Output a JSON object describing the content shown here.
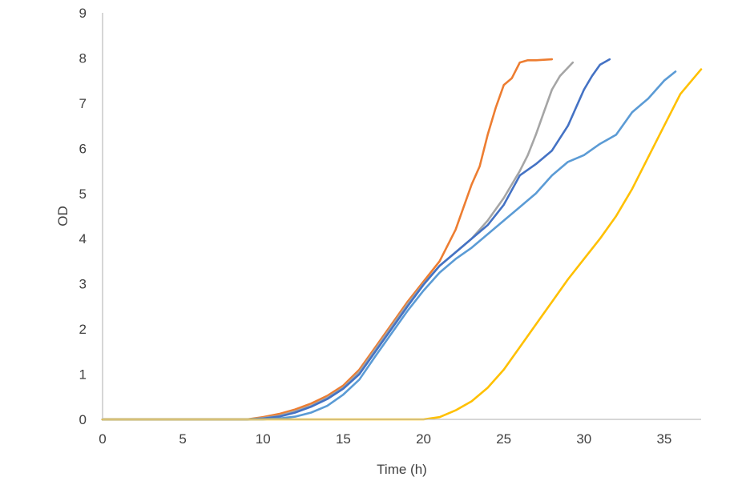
{
  "chart_data": {
    "type": "line",
    "title": "",
    "xlabel": "Time (h)",
    "ylabel": "OD",
    "xlim": [
      0,
      37.3
    ],
    "ylim": [
      0,
      9
    ],
    "x_ticks": [
      0,
      5,
      10,
      15,
      20,
      25,
      30,
      35
    ],
    "y_ticks": [
      0,
      1,
      2,
      3,
      4,
      5,
      6,
      7,
      8,
      9
    ],
    "grid": false,
    "legend": "none",
    "series": [
      {
        "color": "#ed7d31",
        "x": [
          0,
          9,
          10,
          11,
          12,
          13,
          14,
          15,
          16,
          17,
          18,
          19,
          20,
          21,
          22,
          22.5,
          23,
          23.5,
          24,
          24.5,
          25,
          25.5,
          26,
          26.5,
          27,
          28
        ],
        "y": [
          0,
          0,
          0.05,
          0.12,
          0.22,
          0.35,
          0.52,
          0.75,
          1.1,
          1.6,
          2.1,
          2.6,
          3.05,
          3.5,
          4.2,
          4.7,
          5.2,
          5.6,
          6.3,
          6.9,
          7.4,
          7.55,
          7.9,
          7.95,
          7.95,
          7.97
        ]
      },
      {
        "color": "#a5a5a5",
        "x": [
          0,
          9,
          10,
          11,
          12,
          13,
          14,
          15,
          16,
          17,
          18,
          19,
          20,
          21,
          22,
          23,
          24,
          25,
          25.5,
          26,
          26.5,
          27,
          27.5,
          28,
          28.5,
          29.3
        ],
        "y": [
          0,
          0,
          0.03,
          0.08,
          0.18,
          0.3,
          0.48,
          0.7,
          1.05,
          1.55,
          2.05,
          2.55,
          3.0,
          3.4,
          3.7,
          4.0,
          4.4,
          4.9,
          5.2,
          5.5,
          5.85,
          6.3,
          6.8,
          7.3,
          7.6,
          7.9
        ]
      },
      {
        "color": "#4472c4",
        "x": [
          0,
          9,
          10,
          11,
          12,
          13,
          14,
          15,
          16,
          17,
          18,
          19,
          20,
          21,
          22,
          23,
          24,
          25,
          26,
          27,
          28,
          29,
          29.5,
          30,
          30.5,
          31,
          31.6
        ],
        "y": [
          0,
          0,
          0.02,
          0.06,
          0.15,
          0.28,
          0.45,
          0.68,
          1.0,
          1.5,
          2.0,
          2.5,
          2.98,
          3.4,
          3.7,
          4.0,
          4.3,
          4.75,
          5.4,
          5.65,
          5.95,
          6.5,
          6.9,
          7.3,
          7.6,
          7.85,
          7.97
        ]
      },
      {
        "color": "#5b9bd5",
        "x": [
          0,
          10,
          11,
          12,
          13,
          14,
          15,
          16,
          17,
          18,
          19,
          20,
          21,
          22,
          23,
          24,
          25,
          26,
          27,
          28,
          29,
          30,
          31,
          32,
          33,
          34,
          35,
          35.7
        ],
        "y": [
          0,
          0,
          0.02,
          0.06,
          0.15,
          0.3,
          0.55,
          0.88,
          1.4,
          1.9,
          2.4,
          2.85,
          3.25,
          3.55,
          3.8,
          4.1,
          4.4,
          4.7,
          5.0,
          5.4,
          5.7,
          5.85,
          6.1,
          6.3,
          6.8,
          7.1,
          7.5,
          7.7
        ]
      },
      {
        "color": "#ffc000",
        "x": [
          0,
          20,
          21,
          22,
          23,
          24,
          25,
          26,
          27,
          28,
          29,
          30,
          31,
          32,
          33,
          34,
          35,
          36,
          37.3
        ],
        "y": [
          0,
          0,
          0.05,
          0.2,
          0.4,
          0.7,
          1.1,
          1.6,
          2.1,
          2.6,
          3.1,
          3.55,
          4.0,
          4.5,
          5.1,
          5.8,
          6.5,
          7.2,
          7.75
        ]
      }
    ]
  }
}
